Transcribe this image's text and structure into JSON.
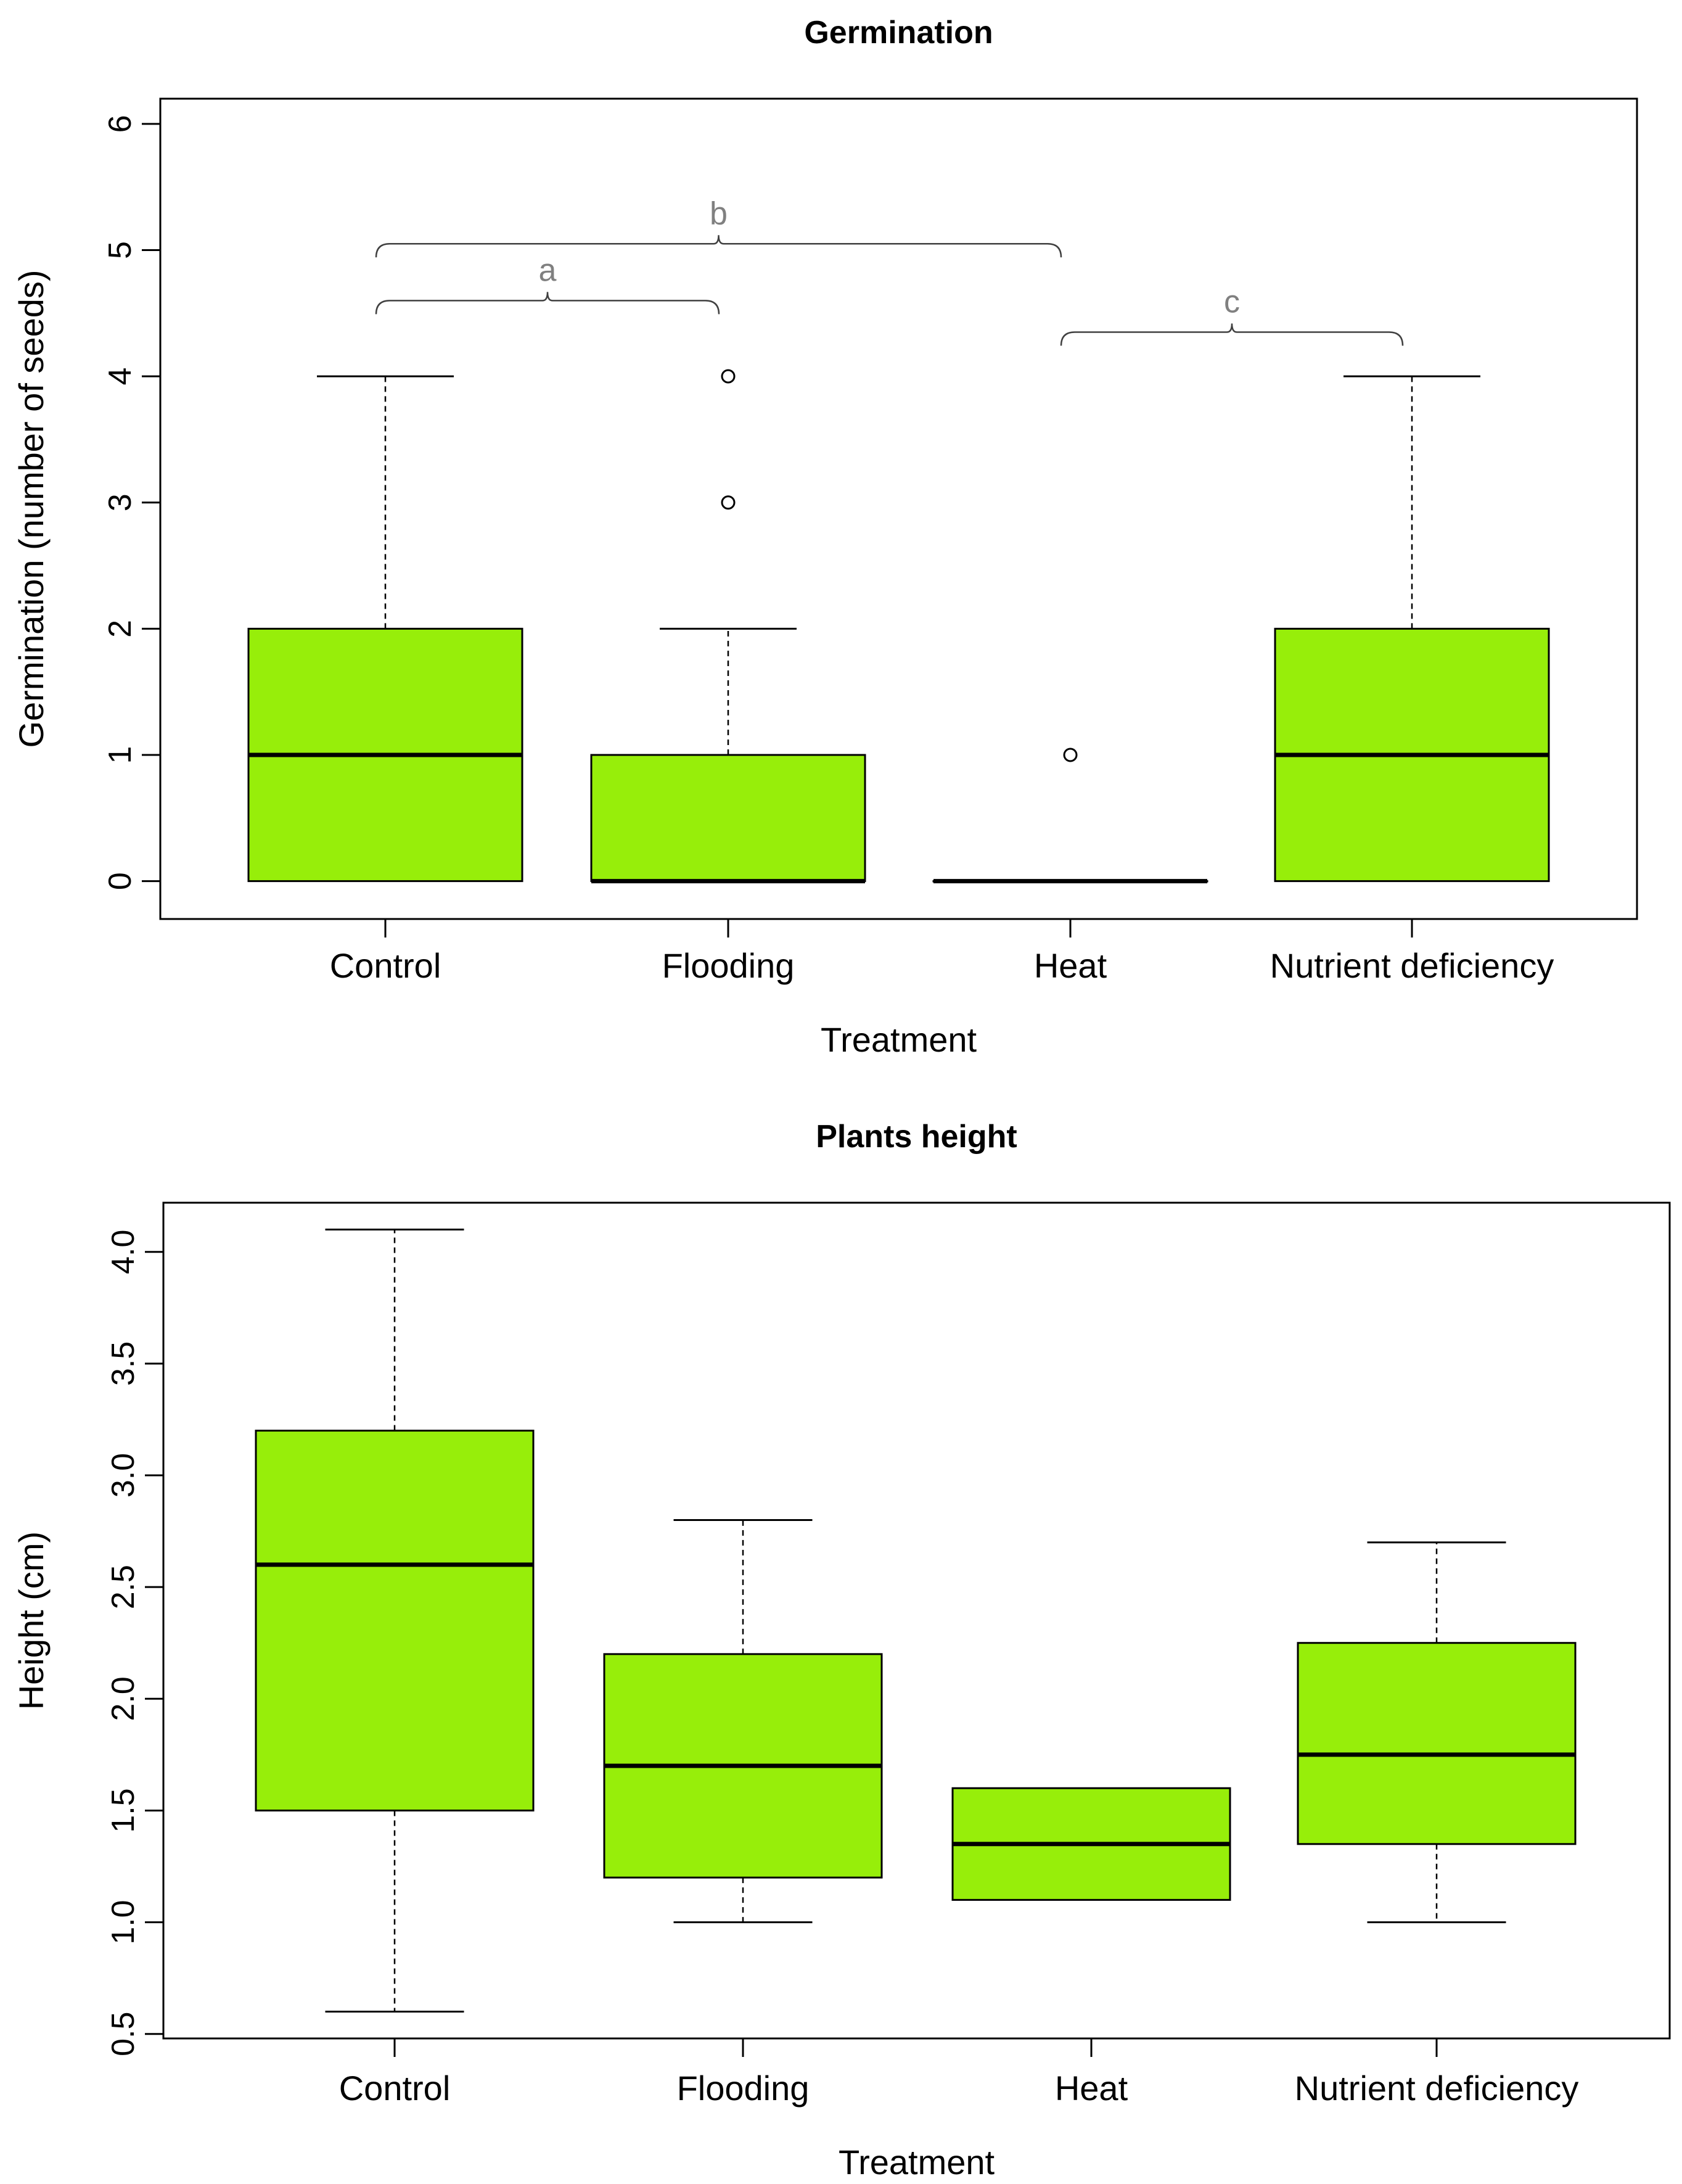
{
  "colors": {
    "box_fill": "#97ee0a",
    "box_stroke": "#000000",
    "annotation": "#808080",
    "background": "#ffffff"
  },
  "chart_data": [
    {
      "type": "boxplot",
      "title": "Germination",
      "xlabel": "Treatment",
      "ylabel": "Germination (number of seeds)",
      "ylim": [
        -0.3,
        6.2
      ],
      "yticks": [
        0,
        1,
        2,
        3,
        4,
        5,
        6
      ],
      "ytick_labels": [
        "0",
        "1",
        "2",
        "3",
        "4",
        "5",
        "6"
      ],
      "categories": [
        "Control",
        "Flooding",
        "Heat",
        "Nutrient deficiency"
      ],
      "boxes": [
        {
          "category": "Control",
          "whisker_low": 0,
          "q1": 0,
          "median": 1,
          "q3": 2,
          "whisker_high": 4,
          "outliers": []
        },
        {
          "category": "Flooding",
          "whisker_low": 0,
          "q1": 0,
          "median": 0,
          "q3": 1,
          "whisker_high": 2,
          "outliers": [
            3,
            4
          ]
        },
        {
          "category": "Heat",
          "whisker_low": 0,
          "q1": 0,
          "median": 0,
          "q3": 0,
          "whisker_high": 0,
          "outliers": [
            1
          ]
        },
        {
          "category": "Nutrient deficiency",
          "whisker_low": 0,
          "q1": 0,
          "median": 1,
          "q3": 2,
          "whisker_high": 4,
          "outliers": []
        }
      ],
      "annotations": [
        {
          "label": "a",
          "from": "Control",
          "to": "Flooding",
          "y": 4.6
        },
        {
          "label": "b",
          "from": "Control",
          "to": "Heat",
          "y": 5.05
        },
        {
          "label": "c",
          "from": "Heat",
          "to": "Nutrient deficiency",
          "y": 4.35
        }
      ]
    },
    {
      "type": "boxplot",
      "title": "Plants height",
      "xlabel": "Treatment",
      "ylabel": "Height (cm)",
      "ylim": [
        0.48,
        4.22
      ],
      "yticks": [
        0.5,
        1.0,
        1.5,
        2.0,
        2.5,
        3.0,
        3.5,
        4.0
      ],
      "ytick_labels": [
        "0.5",
        "1.0",
        "1.5",
        "2.0",
        "2.5",
        "3.0",
        "3.5",
        "4.0"
      ],
      "categories": [
        "Control",
        "Flooding",
        "Heat",
        "Nutrient deficiency"
      ],
      "boxes": [
        {
          "category": "Control",
          "whisker_low": 0.6,
          "q1": 1.5,
          "median": 2.6,
          "q3": 3.2,
          "whisker_high": 4.1,
          "outliers": []
        },
        {
          "category": "Flooding",
          "whisker_low": 1.0,
          "q1": 1.2,
          "median": 1.7,
          "q3": 2.2,
          "whisker_high": 2.8,
          "outliers": []
        },
        {
          "category": "Heat",
          "whisker_low": 1.1,
          "q1": 1.1,
          "median": 1.35,
          "q3": 1.6,
          "whisker_high": 1.6,
          "outliers": []
        },
        {
          "category": "Nutrient deficiency",
          "whisker_low": 1.0,
          "q1": 1.35,
          "median": 1.75,
          "q3": 2.25,
          "whisker_high": 2.7,
          "outliers": []
        }
      ],
      "annotations": []
    }
  ]
}
